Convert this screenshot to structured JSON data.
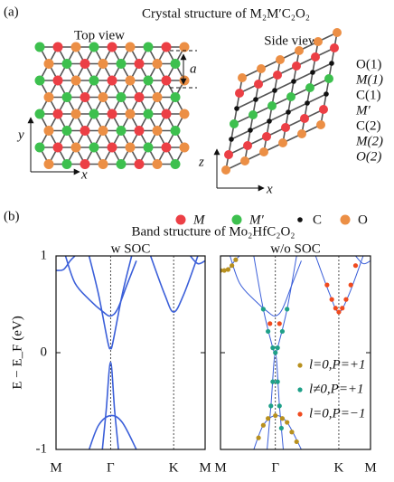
{
  "panel_a": {
    "label": "(a)",
    "title": "Crystal structure of M₂M′C₂O₂",
    "top_view": "Top view",
    "side_view": "Side view",
    "lattice_label": "a",
    "top_axes": [
      "x",
      "y"
    ],
    "side_axes": [
      "x",
      "z"
    ],
    "layers": [
      "O(1)",
      "M(1)",
      "C(1)",
      "M′",
      "C(2)",
      "M(2)",
      "O(2)"
    ],
    "legend": [
      {
        "label": "M",
        "color": "#ec3f45"
      },
      {
        "label": "M′",
        "color": "#3dc04e"
      },
      {
        "label": "C",
        "color": "#111111"
      },
      {
        "label": "O",
        "color": "#ec8f45"
      }
    ]
  },
  "panel_b": {
    "label": "(b)",
    "title": "Band structure of Mo₂HfC₂O₂"
  },
  "chart_data": [
    {
      "type": "line",
      "title": "w SOC",
      "y_label": "E − E_F (eV)",
      "line_color": "#3b5fd9",
      "xlim": [
        0,
        1.577
      ],
      "ylim": [
        -1,
        1
      ],
      "yticks": [
        -1,
        0,
        1
      ],
      "xticks": [
        {
          "value": 0,
          "label": "M"
        },
        {
          "value": 0.577,
          "label": "Γ"
        },
        {
          "value": 1.244,
          "label": "K"
        },
        {
          "value": 1.577,
          "label": "M"
        }
      ],
      "series": [
        {
          "x": [
            0,
            0.08,
            0.15,
            0.2
          ],
          "y": [
            0.85,
            0.86,
            0.95,
            1.0
          ]
        },
        {
          "x": [
            0.1,
            0.2,
            0.35,
            0.5,
            0.577,
            0.65,
            0.75,
            0.85
          ],
          "y": [
            1.0,
            0.72,
            0.55,
            0.42,
            0.38,
            0.45,
            0.7,
            0.95
          ]
        },
        {
          "x": [
            0.35,
            0.45,
            0.55,
            0.577,
            0.6,
            0.7,
            0.8
          ],
          "y": [
            1.0,
            0.6,
            0.1,
            0.05,
            0.1,
            0.6,
            1.0
          ]
        },
        {
          "x": [
            0.49,
            0.53,
            0.577,
            0.62,
            0.66
          ],
          "y": [
            -1,
            -0.6,
            -0.1,
            -0.6,
            -1
          ]
        },
        {
          "x": [
            0.35,
            0.45,
            0.577,
            0.7,
            0.85
          ],
          "y": [
            -1,
            -0.75,
            -0.65,
            -0.72,
            -1
          ]
        },
        {
          "x": [
            1.0,
            1.15,
            1.244,
            1.35,
            1.5
          ],
          "y": [
            1.0,
            0.6,
            0.42,
            0.6,
            1.0
          ]
        },
        {
          "x": [
            1.42,
            1.5,
            1.577
          ],
          "y": [
            1.0,
            0.92,
            0.95
          ]
        }
      ]
    },
    {
      "type": "line",
      "title": "w/o SOC",
      "line_color": "#3b5fd9",
      "xlim": [
        0,
        1.577
      ],
      "ylim": [
        -1,
        1
      ],
      "yticks": [
        -1,
        0,
        1
      ],
      "xticks": [
        {
          "value": 0,
          "label": "M"
        },
        {
          "value": 0.577,
          "label": "Γ"
        },
        {
          "value": 1.244,
          "label": "K"
        },
        {
          "value": 1.577,
          "label": "M"
        }
      ],
      "series": [
        {
          "x": [
            0,
            0.08,
            0.15,
            0.2
          ],
          "y": [
            0.85,
            0.86,
            0.95,
            1.0
          ]
        },
        {
          "x": [
            0.1,
            0.2,
            0.35,
            0.5,
            0.577,
            0.65,
            0.75,
            0.85
          ],
          "y": [
            1.0,
            0.72,
            0.55,
            0.42,
            0.38,
            0.45,
            0.7,
            0.95
          ]
        },
        {
          "x": [
            0.35,
            0.45,
            0.55,
            0.577,
            0.6,
            0.7,
            0.8
          ],
          "y": [
            1.0,
            0.45,
            0.05,
            0,
            0.05,
            0.45,
            1.0
          ]
        },
        {
          "x": [
            0.49,
            0.53,
            0.577,
            0.62,
            0.66
          ],
          "y": [
            -1,
            -0.55,
            0,
            -0.55,
            -1
          ]
        },
        {
          "x": [
            0.35,
            0.45,
            0.577,
            0.7,
            0.85
          ],
          "y": [
            -1,
            -0.75,
            -0.65,
            -0.72,
            -1
          ]
        },
        {
          "x": [
            1.0,
            1.15,
            1.244,
            1.35,
            1.5
          ],
          "y": [
            1.0,
            0.6,
            0.42,
            0.6,
            1.0
          ]
        },
        {
          "x": [
            1.42,
            1.5,
            1.577
          ],
          "y": [
            1.0,
            0.92,
            0.95
          ]
        }
      ],
      "projections": [
        {
          "name": "l=0,P=+1",
          "color": "#b8901e",
          "x": [
            0,
            0.04,
            0.08,
            0.12,
            0.16,
            0.4,
            0.45,
            0.5,
            0.577,
            0.65,
            0.7,
            0.75,
            0.8
          ],
          "y": [
            0.85,
            0.85,
            0.86,
            0.9,
            0.96,
            -0.88,
            -0.75,
            -0.68,
            -0.65,
            -0.68,
            -0.72,
            -0.82,
            -0.92
          ]
        },
        {
          "name": "l≠0,P=+1",
          "color": "#1ea088",
          "x": [
            0.45,
            0.5,
            0.55,
            0.577,
            0.6,
            0.65,
            0.7,
            0.53,
            0.55,
            0.6,
            0.62,
            0.64
          ],
          "y": [
            0.45,
            0.22,
            0.05,
            0,
            0.05,
            0.22,
            0.45,
            -0.55,
            -0.3,
            -0.3,
            -0.55,
            -0.78
          ]
        },
        {
          "name": "l=0,P=−1",
          "color": "#f04a1e",
          "x": [
            1.12,
            1.17,
            1.21,
            1.244,
            1.28,
            1.32,
            1.37,
            1.42,
            0.52,
            0.62
          ],
          "y": [
            0.7,
            0.55,
            0.46,
            0.42,
            0.46,
            0.55,
            0.7,
            0.9,
            0.3,
            0.3
          ]
        }
      ]
    }
  ]
}
